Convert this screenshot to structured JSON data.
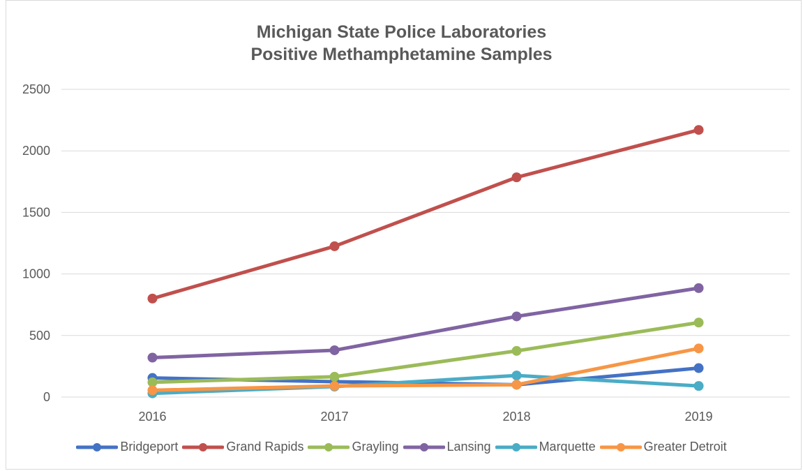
{
  "chart_data": {
    "type": "line",
    "title_line1": "Michigan State Police Laboratories",
    "title_line2": "Positive Methamphetamine Samples",
    "categories": [
      "2016",
      "2017",
      "2018",
      "2019"
    ],
    "ylim": [
      0,
      2500
    ],
    "yticks": [
      0,
      500,
      1000,
      1500,
      2000,
      2500
    ],
    "grid": true,
    "legend_position": "bottom",
    "series": [
      {
        "name": "Bridgeport",
        "color": "#4472C4",
        "values": [
          155,
          125,
          100,
          235
        ]
      },
      {
        "name": "Grand Rapids",
        "color": "#C0504D",
        "values": [
          800,
          1225,
          1785,
          2170
        ]
      },
      {
        "name": "Grayling",
        "color": "#9BBB59",
        "values": [
          120,
          165,
          375,
          605
        ]
      },
      {
        "name": "Lansing",
        "color": "#8064A2",
        "values": [
          320,
          380,
          655,
          885
        ]
      },
      {
        "name": "Marquette",
        "color": "#4BACC6",
        "values": [
          30,
          85,
          175,
          90
        ]
      },
      {
        "name": "Greater Detroit",
        "color": "#F79646",
        "values": [
          55,
          90,
          100,
          395
        ]
      }
    ]
  }
}
